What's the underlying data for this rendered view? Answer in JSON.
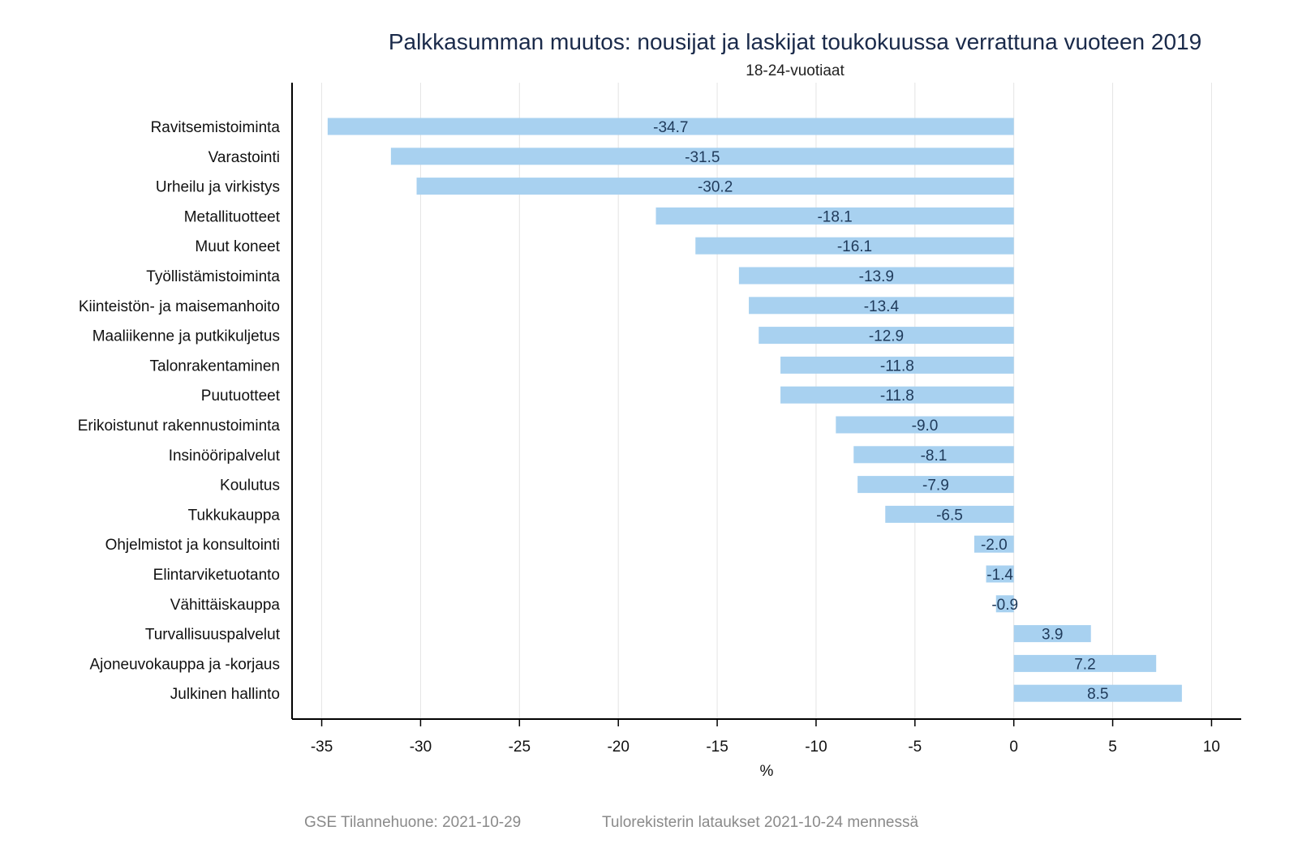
{
  "chart_data": {
    "type": "bar",
    "orientation": "horizontal",
    "title": "Palkkasumman muutos: nousijat ja laskijat toukokuussa verrattuna vuoteen 2019",
    "subtitle": "18-24-vuotiaat",
    "xlabel": "%",
    "ylabel": "",
    "xlim": [
      -36.5,
      11.5
    ],
    "xticks": [
      -35,
      -30,
      -25,
      -20,
      -15,
      -10,
      -5,
      0,
      5,
      10
    ],
    "xtick_labels": [
      "-35",
      "-30",
      "-25",
      "-20",
      "-15",
      "-10",
      "-5",
      "0",
      "5",
      "10"
    ],
    "grid": "vertical",
    "bar_color": "#a8d1f0",
    "categories": [
      "Ravitsemistoiminta",
      "Varastointi",
      "Urheilu ja virkistys",
      "Metallituotteet",
      "Muut koneet",
      "Työllistämistoiminta",
      "Kiinteistön- ja maisemanhoito",
      "Maaliikenne ja putkikuljetus",
      "Talonrakentaminen",
      "Puutuotteet",
      "Erikoistunut rakennustoiminta",
      "Insinööripalvelut",
      "Koulutus",
      "Tukkukauppa",
      "Ohjelmistot ja konsultointi",
      "Elintarviketuotanto",
      "Vähittäiskauppa",
      "Turvallisuuspalvelut",
      "Ajoneuvokauppa ja -korjaus",
      "Julkinen hallinto"
    ],
    "values": [
      -34.7,
      -31.5,
      -30.2,
      -18.1,
      -16.1,
      -13.9,
      -13.4,
      -12.9,
      -11.8,
      -11.8,
      -9.0,
      -8.1,
      -7.9,
      -6.5,
      -2.0,
      -1.4,
      -0.9,
      3.9,
      7.2,
      8.5
    ],
    "value_labels": [
      "-34.7",
      "-31.5",
      "-30.2",
      "-18.1",
      "-16.1",
      "-13.9",
      "-13.4",
      "-12.9",
      "-11.8",
      "-11.8",
      "-9.0",
      "-8.1",
      "-7.9",
      "-6.5",
      "-2.0",
      "-1.4",
      "-0.9",
      "3.9",
      "7.2",
      "8.5"
    ]
  },
  "footer": {
    "source": "GSE Tilannehuone: 2021-10-29",
    "note": "Tulorekisterin lataukset 2021-10-24 mennessä"
  }
}
